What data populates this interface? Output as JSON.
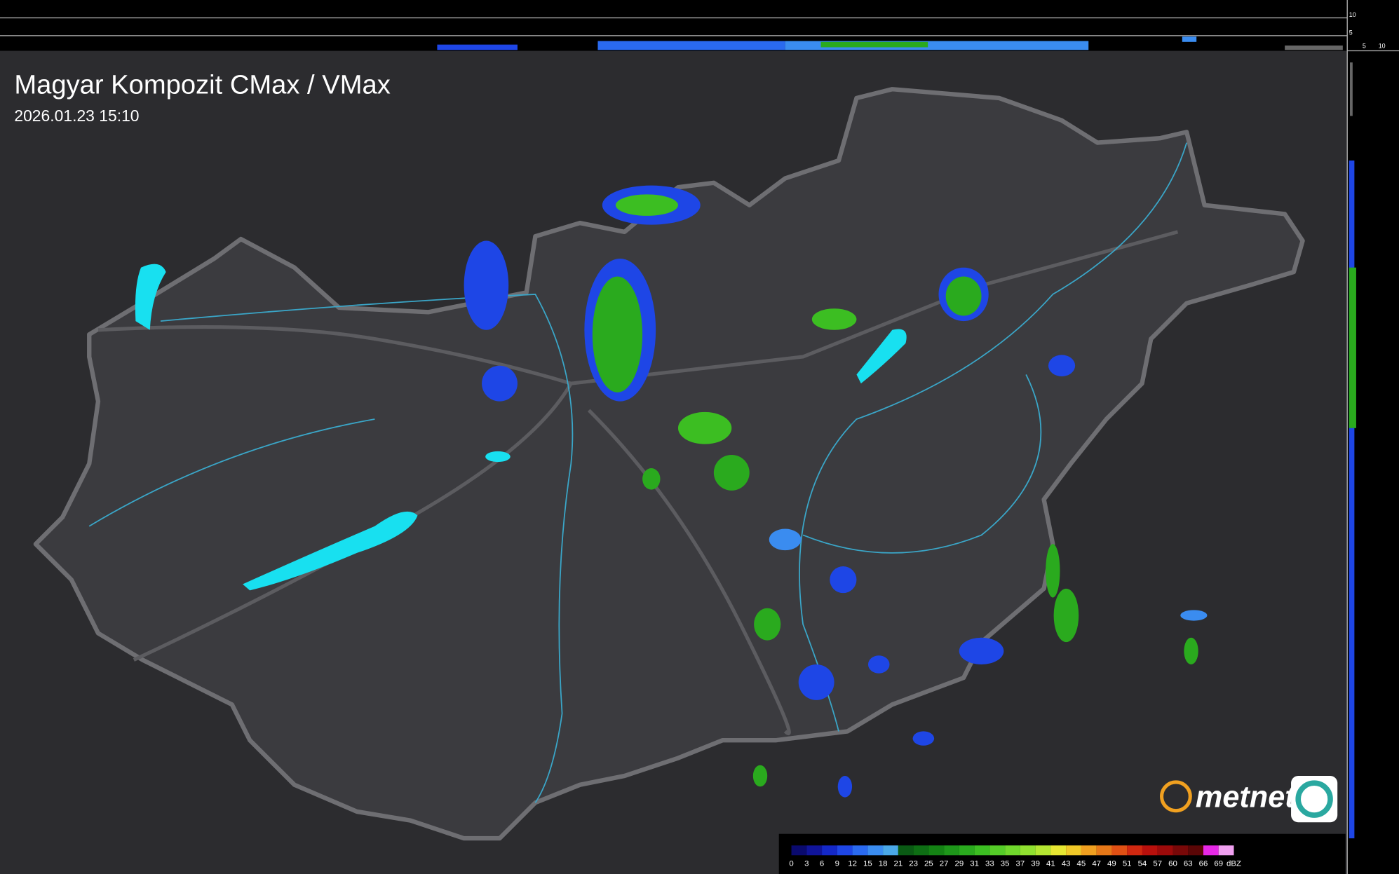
{
  "header": {
    "title": "Magyar Kompozit CMax / VMax",
    "timestamp": "2026.01.23 15:10"
  },
  "profile_axes": {
    "top": [
      10,
      5
    ],
    "right": [
      5,
      10
    ]
  },
  "logo": {
    "text": "metnet"
  },
  "legend": {
    "unit": "dBZ",
    "labels": [
      0,
      3,
      6,
      9,
      12,
      15,
      18,
      21,
      23,
      25,
      27,
      29,
      31,
      33,
      35,
      37,
      39,
      41,
      43,
      45,
      47,
      49,
      51,
      54,
      57,
      60,
      63,
      66,
      69
    ],
    "colors": [
      "#0a0a6e",
      "#10149a",
      "#1428c8",
      "#1e46e6",
      "#2a6af0",
      "#3a8cf0",
      "#4aa8e8",
      "#0a5a14",
      "#0e6e14",
      "#148214",
      "#1e961a",
      "#2aaa1e",
      "#3cbe22",
      "#55cc28",
      "#70d82c",
      "#90e030",
      "#b4e632",
      "#e6e632",
      "#f0c828",
      "#f0a020",
      "#e67818",
      "#e05014",
      "#d02810",
      "#b8100c",
      "#9c0a0a",
      "#780808",
      "#5a0606",
      "#e628e6",
      "#f0a0f0"
    ]
  }
}
